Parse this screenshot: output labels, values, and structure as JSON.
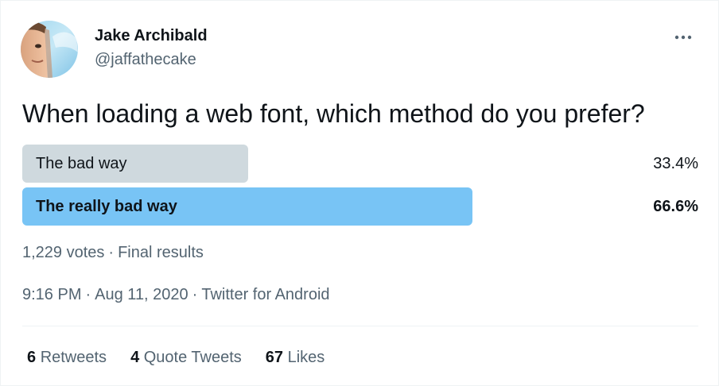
{
  "author": {
    "name": "Jake Archibald",
    "handle": "@jaffathecake"
  },
  "menu": {
    "icon": "more-horizontal-icon"
  },
  "tweet": {
    "text": "When loading a web font, which method do you prefer?"
  },
  "poll": {
    "options": [
      {
        "label": "The bad way",
        "percent_text": "33.4%",
        "percent": 33.4,
        "color": "#cfd9de",
        "winner": false
      },
      {
        "label": "The really bad way",
        "percent_text": "66.6%",
        "percent": 66.6,
        "color": "#78c4f5",
        "winner": true
      }
    ],
    "votes": "1,229 votes",
    "separator": "·",
    "status": "Final results"
  },
  "meta": {
    "time": "9:16 PM",
    "separator": "·",
    "date": "Aug 11, 2020",
    "source": "Twitter for Android"
  },
  "stats": {
    "retweets": {
      "count": "6",
      "label": "Retweets"
    },
    "quotes": {
      "count": "4",
      "label": "Quote Tweets"
    },
    "likes": {
      "count": "67",
      "label": "Likes"
    }
  },
  "colors": {
    "text_primary": "#0f1419",
    "text_secondary": "#536471",
    "divider": "#eff3f4"
  }
}
